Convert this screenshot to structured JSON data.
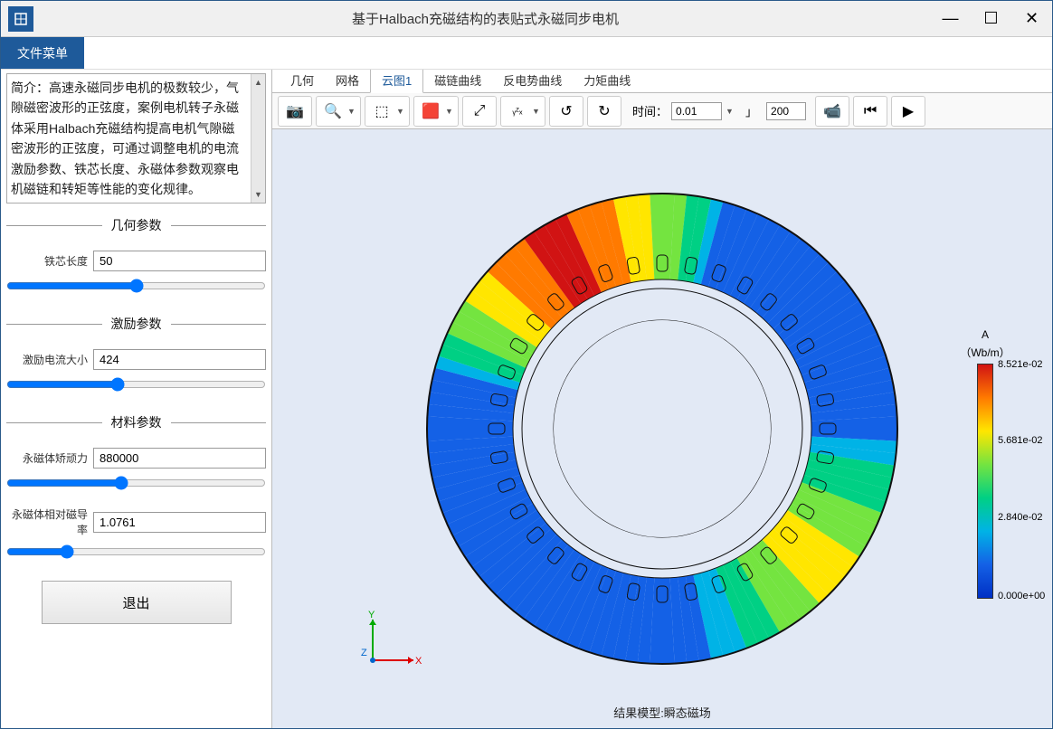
{
  "window": {
    "title": "基于Halbach充磁结构的表贴式永磁同步电机"
  },
  "menubar": {
    "file_menu": "文件菜单"
  },
  "sidebar": {
    "description": "简介：高速永磁同步电机的极数较少，气隙磁密波形的正弦度，案例电机转子永磁体采用Halbach充磁结构提高电机气隙磁密波形的正弦度，可通过调整电机的电流激励参数、铁芯长度、永磁体参数观察电机磁链和转矩等性能的变化规律。",
    "sections": {
      "geometry": {
        "title": "几何参数",
        "core_length_label": "铁芯长度",
        "core_length_value": "50"
      },
      "excitation": {
        "title": "激励参数",
        "current_label": "激励电流大小",
        "current_value": "424"
      },
      "material": {
        "title": "材料参数",
        "coercivity_label": "永磁体矫顽力",
        "coercivity_value": "880000",
        "permeability_label": "永磁体相对磁导率",
        "permeability_value": "1.0761"
      }
    },
    "exit_button": "退出"
  },
  "tabs": {
    "items": [
      "几何",
      "网格",
      "云图1",
      "磁链曲线",
      "反电势曲线",
      "力矩曲线"
    ],
    "active_index": 2
  },
  "toolbar": {
    "time_label": "时间：",
    "time_value": "0.01",
    "spin_value": "200"
  },
  "viewport": {
    "footer_caption": "结果模型:瞬态磁场",
    "axis_labels": {
      "x": "X",
      "y": "Y",
      "z": "Z"
    }
  },
  "colorbar": {
    "title": "A",
    "unit": "（Wb/m）",
    "ticks": [
      {
        "label": "8.521e-02",
        "pos": 0
      },
      {
        "label": "5.681e-02",
        "pos": 33
      },
      {
        "label": "2.840e-02",
        "pos": 66
      },
      {
        "label": "0.000e+00",
        "pos": 100
      }
    ]
  },
  "simulation": {
    "outer_radius": 260,
    "stator_inner_radius": 165,
    "rotor_outer_radius": 155,
    "rotor_inner_radius": 120,
    "slot_count": 36,
    "field_stops": [
      {
        "o": "0%",
        "c": "#d11313"
      },
      {
        "o": "12%",
        "c": "#ff7a00"
      },
      {
        "o": "22%",
        "c": "#ffe600"
      },
      {
        "o": "32%",
        "c": "#74e440"
      },
      {
        "o": "42%",
        "c": "#00d084"
      },
      {
        "o": "55%",
        "c": "#00b3e6"
      },
      {
        "o": "70%",
        "c": "#1461e6"
      },
      {
        "o": "100%",
        "c": "#0030c4"
      }
    ]
  }
}
